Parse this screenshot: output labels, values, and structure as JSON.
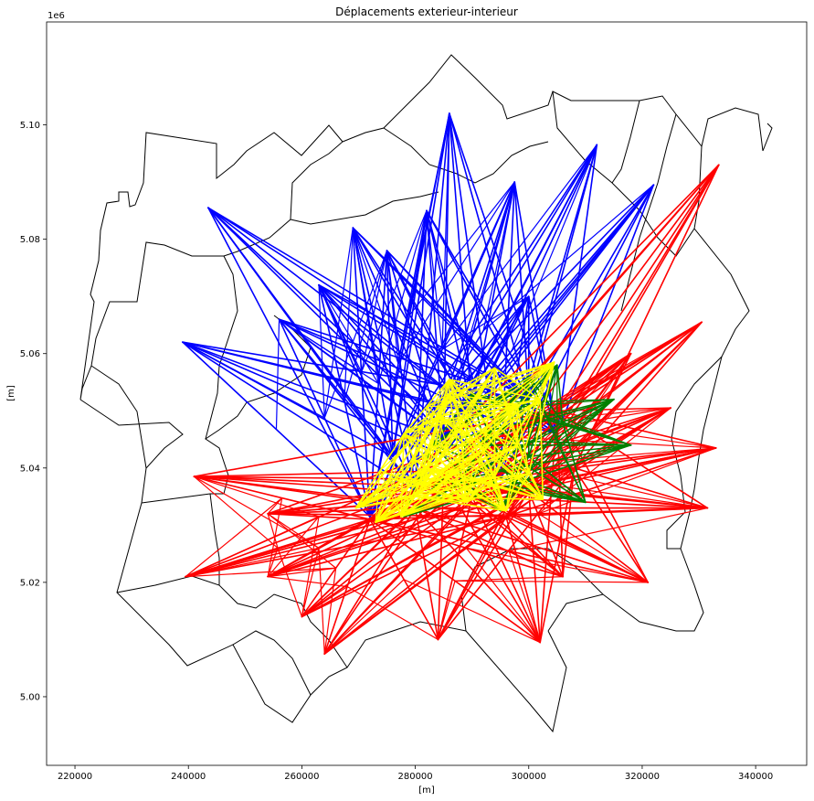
{
  "chart_data": {
    "type": "line",
    "title": "Déplacements exterieur-interieur",
    "xlabel": "[m]",
    "ylabel": "[m]",
    "y_offset_label": "1e6",
    "xlim": [
      215000,
      349000
    ],
    "ylim": [
      4988000,
      5118000
    ],
    "x_ticks": [
      220000,
      240000,
      260000,
      280000,
      300000,
      320000,
      340000
    ],
    "x_tick_labels": [
      "220000",
      "240000",
      "260000",
      "280000",
      "300000",
      "320000",
      "340000"
    ],
    "y_ticks": [
      5000000,
      5020000,
      5040000,
      5060000,
      5080000,
      5100000
    ],
    "y_tick_labels": [
      "5.00",
      "5.02",
      "5.04",
      "5.06",
      "5.08",
      "5.10"
    ],
    "grid": false,
    "colors": {
      "boundary": "#000000",
      "blue_flows": "#0000ff",
      "red_flows": "#ff0000",
      "green_flows": "#008000",
      "yellow_flows": "#ffff00"
    },
    "series": [
      {
        "color": "#0000ff",
        "origins": [
          [
            239000,
            5062000
          ],
          [
            243500,
            5085500
          ],
          [
            269000,
            5082000
          ],
          [
            286000,
            5102000
          ],
          [
            297500,
            5090000
          ],
          [
            312000,
            5096500
          ],
          [
            322000,
            5089500
          ],
          [
            263000,
            5072000
          ],
          [
            275000,
            5078000
          ],
          [
            300000,
            5070000
          ],
          [
            256000,
            5066000
          ],
          [
            282000,
            5085000
          ]
        ],
        "destinations": [
          [
            272000,
            5031500
          ],
          [
            280000,
            5036000
          ],
          [
            285000,
            5045000
          ],
          [
            290000,
            5050000
          ],
          [
            295000,
            5038000
          ],
          [
            300000,
            5052000
          ],
          [
            305000,
            5046000
          ],
          [
            276000,
            5042000
          ]
        ]
      },
      {
        "color": "#ff0000",
        "origins": [
          [
            333500,
            5093000
          ],
          [
            330500,
            5065500
          ],
          [
            325000,
            5050500
          ],
          [
            333000,
            5043500
          ],
          [
            331500,
            5033000
          ],
          [
            321000,
            5020000
          ],
          [
            306000,
            5021000
          ],
          [
            302000,
            5009500
          ],
          [
            284000,
            5010000
          ],
          [
            264000,
            5007500
          ],
          [
            260000,
            5014000
          ],
          [
            254000,
            5021000
          ],
          [
            239500,
            5021000
          ],
          [
            241000,
            5038500
          ],
          [
            254000,
            5032000
          ],
          [
            318000,
            5060000
          ]
        ],
        "destinations": [
          [
            272000,
            5031000
          ],
          [
            280000,
            5033000
          ],
          [
            290000,
            5035000
          ],
          [
            300000,
            5036000
          ],
          [
            308000,
            5040000
          ],
          [
            296000,
            5031500
          ],
          [
            285000,
            5038000
          ],
          [
            305000,
            5050000
          ]
        ]
      },
      {
        "color": "#008000",
        "origins": [
          [
            278000,
            5031500
          ],
          [
            295000,
            5032500
          ],
          [
            310000,
            5034000
          ],
          [
            318000,
            5044000
          ],
          [
            315000,
            5052000
          ],
          [
            305000,
            5058000
          ],
          [
            300000,
            5056000
          ],
          [
            290000,
            5053000
          ]
        ],
        "destinations": [
          [
            292000,
            5045000
          ],
          [
            300000,
            5042000
          ],
          [
            306000,
            5048000
          ],
          [
            288000,
            5038000
          ],
          [
            297000,
            5037000
          ],
          [
            283000,
            5044000
          ]
        ]
      },
      {
        "color": "#ffff00",
        "origins": [
          [
            269500,
            5033000
          ],
          [
            273000,
            5030500
          ],
          [
            277500,
            5031500
          ],
          [
            286000,
            5055500
          ],
          [
            294000,
            5057500
          ],
          [
            304500,
            5058500
          ],
          [
            302500,
            5034500
          ],
          [
            296000,
            5032500
          ],
          [
            289000,
            5034000
          ],
          [
            281500,
            5037000
          ],
          [
            284000,
            5049000
          ],
          [
            298000,
            5051000
          ]
        ],
        "destinations": [
          [
            278000,
            5046000
          ],
          [
            282000,
            5040000
          ],
          [
            288000,
            5047000
          ],
          [
            292000,
            5043000
          ],
          [
            298000,
            5044000
          ],
          [
            302000,
            5052000
          ],
          [
            294000,
            5038500
          ],
          [
            286000,
            5053000
          ],
          [
            300000,
            5039000
          ],
          [
            280000,
            5035000
          ]
        ]
      }
    ]
  }
}
